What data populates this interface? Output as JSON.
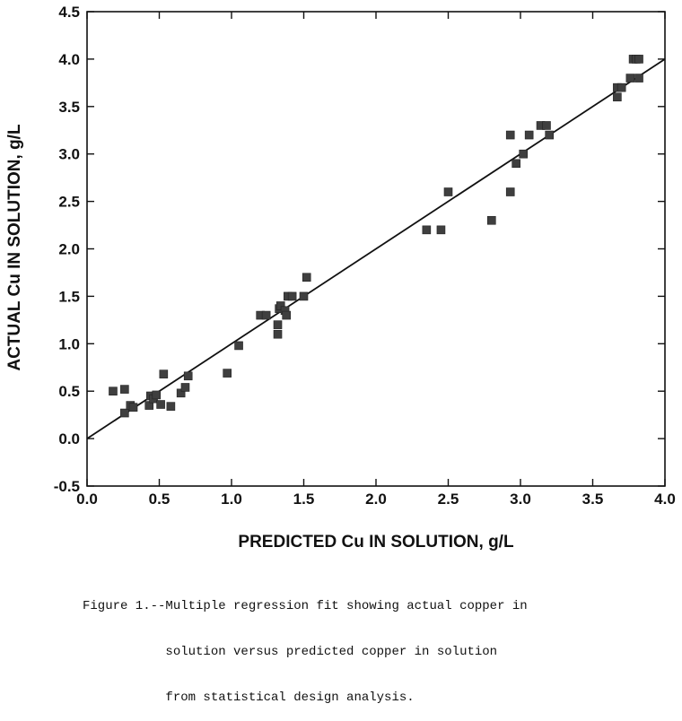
{
  "chart_data": {
    "type": "scatter",
    "title": "",
    "xlabel": "PREDICTED Cu IN SOLUTION, g/L",
    "ylabel": "ACTUAL Cu IN SOLUTION, g/L",
    "xlim": [
      0.0,
      4.0
    ],
    "ylim": [
      -0.5,
      4.5
    ],
    "xticks": [
      "0.0",
      "0.5",
      "1.0",
      "1.5",
      "2.0",
      "2.5",
      "3.0",
      "3.5",
      "4.0"
    ],
    "yticks": [
      "-0.5",
      "0.0",
      "0.5",
      "1.0",
      "1.5",
      "2.0",
      "2.5",
      "3.0",
      "3.5",
      "4.0",
      "4.5"
    ],
    "grid": false,
    "series": [
      {
        "name": "Observed",
        "points": [
          [
            0.18,
            0.5
          ],
          [
            0.26,
            0.52
          ],
          [
            0.26,
            0.27
          ],
          [
            0.3,
            0.35
          ],
          [
            0.32,
            0.33
          ],
          [
            0.43,
            0.35
          ],
          [
            0.44,
            0.45
          ],
          [
            0.46,
            0.42
          ],
          [
            0.48,
            0.46
          ],
          [
            0.51,
            0.36
          ],
          [
            0.53,
            0.68
          ],
          [
            0.58,
            0.34
          ],
          [
            0.65,
            0.48
          ],
          [
            0.68,
            0.54
          ],
          [
            0.7,
            0.66
          ],
          [
            0.97,
            0.69
          ],
          [
            1.05,
            0.98
          ],
          [
            1.2,
            1.3
          ],
          [
            1.24,
            1.3
          ],
          [
            1.32,
            1.1
          ],
          [
            1.32,
            1.2
          ],
          [
            1.33,
            1.37
          ],
          [
            1.34,
            1.4
          ],
          [
            1.37,
            1.35
          ],
          [
            1.38,
            1.3
          ],
          [
            1.39,
            1.5
          ],
          [
            1.42,
            1.5
          ],
          [
            1.5,
            1.5
          ],
          [
            1.52,
            1.7
          ],
          [
            2.35,
            2.2
          ],
          [
            2.45,
            2.2
          ],
          [
            2.5,
            2.6
          ],
          [
            2.8,
            2.3
          ],
          [
            2.93,
            3.2
          ],
          [
            2.93,
            2.6
          ],
          [
            2.97,
            2.9
          ],
          [
            3.02,
            3.0
          ],
          [
            3.06,
            3.2
          ],
          [
            3.14,
            3.3
          ],
          [
            3.18,
            3.3
          ],
          [
            3.2,
            3.2
          ],
          [
            3.67,
            3.6
          ],
          [
            3.67,
            3.7
          ],
          [
            3.7,
            3.7
          ],
          [
            3.76,
            3.8
          ],
          [
            3.78,
            4.0
          ],
          [
            3.8,
            4.0
          ],
          [
            3.82,
            4.0
          ],
          [
            3.82,
            3.8
          ]
        ]
      },
      {
        "name": "Regression fit",
        "line": [
          [
            0.0,
            0.0
          ],
          [
            4.0,
            4.0
          ]
        ]
      }
    ],
    "caption_lines": [
      "Figure 1.--Multiple regression fit showing actual copper in",
      "           solution versus predicted copper in solution",
      "           from statistical design analysis."
    ]
  }
}
